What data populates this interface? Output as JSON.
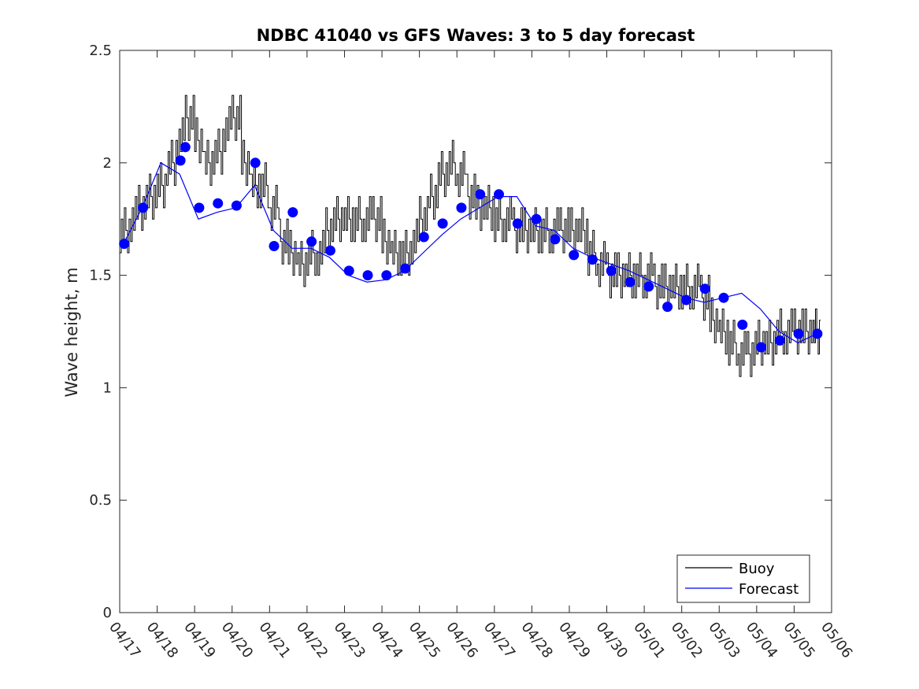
{
  "chart_data": {
    "type": "line",
    "title": "NDBC 41040 vs GFS Waves: 3 to 5 day forecast",
    "xlabel": "",
    "ylabel": "Wave height, m",
    "x_tick_labels": [
      "04/17",
      "04/18",
      "04/19",
      "04/20",
      "04/21",
      "04/22",
      "04/23",
      "04/24",
      "04/25",
      "04/26",
      "04/27",
      "04/28",
      "04/29",
      "04/30",
      "05/01",
      "05/02",
      "05/03",
      "05/04",
      "05/05",
      "05/06"
    ],
    "y_tick_labels": [
      "0",
      "0.5",
      "1",
      "1.5",
      "2",
      "2.5"
    ],
    "ylim": [
      0,
      2.5
    ],
    "xlim_days": [
      0,
      19
    ],
    "grid": false,
    "legend_position": "bottom-right",
    "colors": {
      "buoy": "#000000",
      "forecast": "#0000ff",
      "markers": "#0000ff"
    },
    "series": [
      {
        "name": "Buoy",
        "x_days": [
          0,
          0.25,
          0.5,
          0.75,
          1,
          1.25,
          1.5,
          1.75,
          2,
          2.25,
          2.5,
          2.75,
          3,
          3.25,
          3.5,
          3.75,
          4,
          4.25,
          4.5,
          4.75,
          5,
          5.25,
          5.5,
          5.75,
          6,
          6.25,
          6.5,
          6.75,
          7,
          7.25,
          7.5,
          7.75,
          8,
          8.25,
          8.5,
          8.75,
          9,
          9.25,
          9.5,
          9.75,
          10,
          10.25,
          10.5,
          10.75,
          11,
          11.25,
          11.5,
          11.75,
          12,
          12.25,
          12.5,
          12.75,
          13,
          13.25,
          13.5,
          13.75,
          14,
          14.25,
          14.5,
          14.75,
          15,
          15.25,
          15.5,
          15.75,
          16,
          16.25,
          16.5,
          16.75,
          17,
          17.25,
          17.5,
          17.75,
          18,
          18.25,
          18.5
        ],
        "values": [
          1.7,
          1.75,
          1.8,
          1.85,
          1.9,
          2.0,
          2.1,
          2.2,
          2.1,
          2.0,
          2.05,
          2.15,
          2.2,
          2.0,
          1.9,
          1.9,
          1.8,
          1.65,
          1.6,
          1.55,
          1.6,
          1.6,
          1.7,
          1.75,
          1.75,
          1.75,
          1.75,
          1.75,
          1.65,
          1.6,
          1.6,
          1.65,
          1.75,
          1.85,
          1.95,
          2.0,
          1.95,
          1.85,
          1.8,
          1.8,
          1.75,
          1.75,
          1.7,
          1.7,
          1.7,
          1.7,
          1.7,
          1.7,
          1.7,
          1.7,
          1.6,
          1.55,
          1.5,
          1.5,
          1.5,
          1.5,
          1.5,
          1.45,
          1.45,
          1.45,
          1.45,
          1.45,
          1.4,
          1.3,
          1.25,
          1.2,
          1.15,
          1.15,
          1.2,
          1.2,
          1.25,
          1.25,
          1.25,
          1.25,
          1.25
        ]
      },
      {
        "name": "Forecast",
        "x_days": [
          0.1,
          0.6,
          1.1,
          1.6,
          2.1,
          2.6,
          3.1,
          3.6,
          4.1,
          4.6,
          5.1,
          5.6,
          6.1,
          6.6,
          7.1,
          7.6,
          8.1,
          8.6,
          9.1,
          9.6,
          10.1,
          10.6,
          11.1,
          11.6,
          12.1,
          12.6,
          13.1,
          13.6,
          14.1,
          14.6,
          15.1,
          15.6,
          16.1,
          16.6,
          17.1,
          17.6,
          18.1,
          18.6
        ],
        "values": [
          1.64,
          1.8,
          2.0,
          1.95,
          1.75,
          1.78,
          1.8,
          1.9,
          1.7,
          1.62,
          1.62,
          1.58,
          1.5,
          1.47,
          1.48,
          1.52,
          1.6,
          1.68,
          1.75,
          1.8,
          1.85,
          1.85,
          1.72,
          1.7,
          1.62,
          1.58,
          1.55,
          1.52,
          1.48,
          1.44,
          1.4,
          1.38,
          1.4,
          1.42,
          1.35,
          1.25,
          1.2,
          1.24
        ]
      }
    ],
    "markers": {
      "x_days": [
        0.12,
        0.62,
        1.62,
        1.75,
        2.12,
        2.62,
        3.12,
        3.62,
        4.12,
        4.62,
        5.12,
        5.62,
        6.12,
        6.62,
        7.12,
        7.62,
        8.12,
        8.62,
        9.12,
        9.62,
        10.12,
        10.62,
        11.12,
        11.62,
        12.12,
        12.62,
        13.12,
        13.62,
        14.12,
        14.62,
        15.12,
        15.62,
        16.12,
        16.62,
        17.12,
        17.62,
        18.12,
        18.62
      ],
      "values": [
        1.64,
        1.8,
        2.01,
        2.07,
        1.8,
        1.82,
        1.81,
        2.0,
        1.63,
        1.78,
        1.65,
        1.61,
        1.52,
        1.5,
        1.5,
        1.53,
        1.67,
        1.73,
        1.8,
        1.86,
        1.86,
        1.73,
        1.75,
        1.66,
        1.59,
        1.57,
        1.52,
        1.47,
        1.45,
        1.36,
        1.39,
        1.44,
        1.4,
        1.28,
        1.18,
        1.21,
        1.24,
        1.24
      ]
    }
  }
}
